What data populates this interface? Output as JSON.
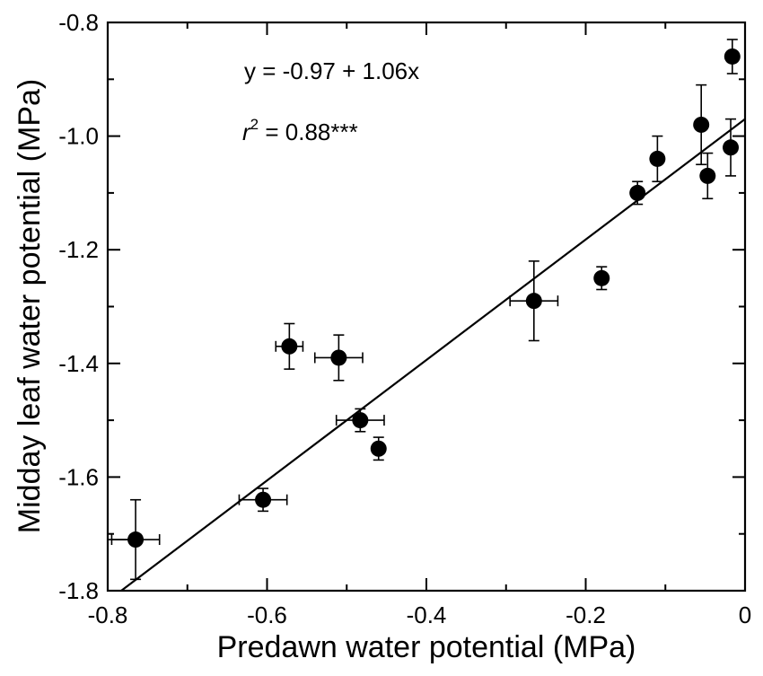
{
  "chart_data": {
    "type": "scatter",
    "xlabel": "Predawn water potential (MPa)",
    "ylabel": "Midday leaf water potential (MPa)",
    "xlim": [
      -0.8,
      0
    ],
    "ylim": [
      -1.8,
      -0.8
    ],
    "xticks": [
      -0.8,
      -0.6,
      -0.4,
      -0.2,
      0
    ],
    "xtick_labels": [
      "-0.8",
      "-0.6",
      "-0.4",
      "-0.2",
      "0"
    ],
    "yticks": [
      -0.8,
      -1.0,
      -1.2,
      -1.4,
      -1.6,
      -1.8
    ],
    "ytick_labels": [
      "-0.8",
      "-1.0",
      "-1.2",
      "-1.4",
      "-1.6",
      "-1.8"
    ],
    "grid": false,
    "equation": "y = -0.97 + 1.06x",
    "r2_label": "r",
    "r2_sup": "2",
    "r2_value": " = 0.88***",
    "fit": {
      "intercept": -0.97,
      "slope": 1.06
    },
    "points": [
      {
        "x": -0.765,
        "y": -1.71,
        "xerr": 0.03,
        "yerr": 0.07
      },
      {
        "x": -0.605,
        "y": -1.64,
        "xerr": 0.03,
        "yerr": 0.02
      },
      {
        "x": -0.572,
        "y": -1.37,
        "xerr": 0.017,
        "yerr": 0.04
      },
      {
        "x": -0.51,
        "y": -1.39,
        "xerr": 0.03,
        "yerr": 0.04
      },
      {
        "x": -0.483,
        "y": -1.5,
        "xerr": 0.03,
        "yerr": 0.02
      },
      {
        "x": -0.46,
        "y": -1.55,
        "xerr": 0.0,
        "yerr": 0.02
      },
      {
        "x": -0.265,
        "y": -1.29,
        "xerr": 0.03,
        "yerr": 0.07
      },
      {
        "x": -0.18,
        "y": -1.25,
        "xerr": 0.0,
        "yerr": 0.02
      },
      {
        "x": -0.135,
        "y": -1.1,
        "xerr": 0.0,
        "yerr": 0.02
      },
      {
        "x": -0.11,
        "y": -1.04,
        "xerr": 0.0,
        "yerr": 0.04
      },
      {
        "x": -0.055,
        "y": -0.98,
        "xerr": 0.0,
        "yerr": 0.07
      },
      {
        "x": -0.047,
        "y": -1.07,
        "xerr": 0.0,
        "yerr": 0.04
      },
      {
        "x": -0.018,
        "y": -1.02,
        "xerr": 0.0,
        "yerr": 0.05
      },
      {
        "x": -0.016,
        "y": -0.86,
        "xerr": 0.0,
        "yerr": 0.03
      }
    ],
    "clipped_point": {
      "x": -0.8,
      "y": -1.71,
      "xerr": 0.03,
      "yerr": 0.0
    },
    "colors": {
      "marker": "#000000",
      "line": "#000000",
      "axis": "#000000"
    }
  }
}
